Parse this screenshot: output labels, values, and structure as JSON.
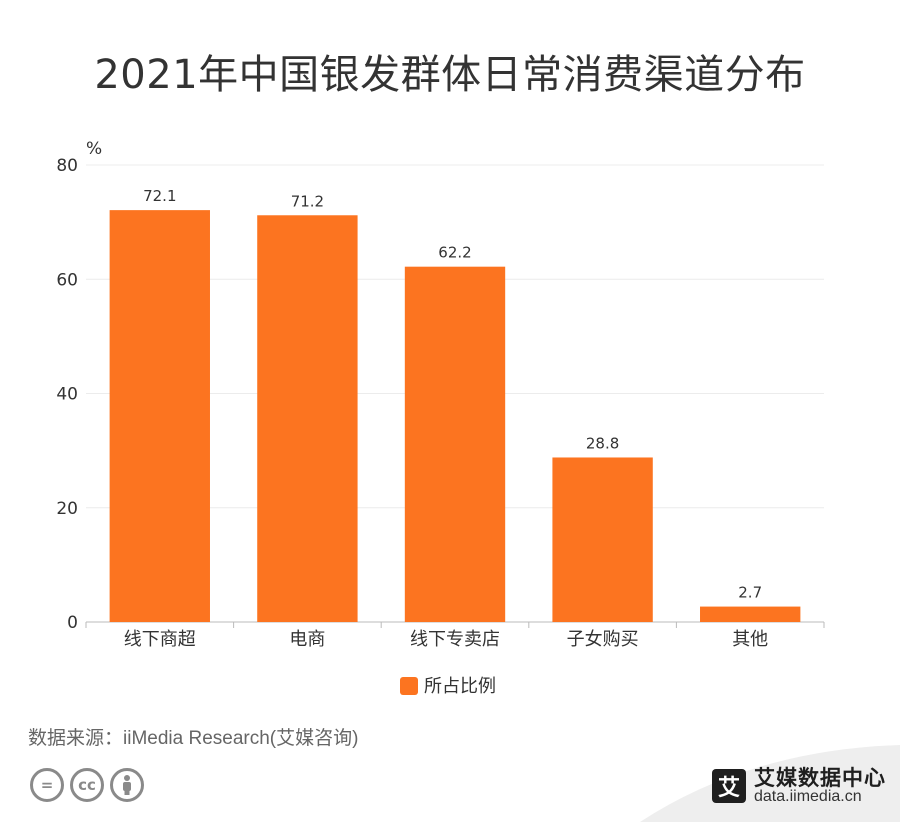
{
  "title": "2021年中国银发群体日常消费渠道分布",
  "source": "数据来源：iiMedia Research(艾媒咨询)",
  "brand": {
    "logo_char": "艾",
    "name": "艾媒数据中心",
    "url": "data.iimedia.cn"
  },
  "license_icons": [
    "=",
    "cc",
    "person"
  ],
  "chart_data": {
    "type": "bar",
    "title": "2021年中国银发群体日常消费渠道分布",
    "ylabel": "%",
    "xlabel": "",
    "categories": [
      "线下商超",
      "电商",
      "线下专卖店",
      "子女购买",
      "其他"
    ],
    "series": [
      {
        "name": "所占比例",
        "values": [
          72.1,
          71.2,
          62.2,
          28.8,
          2.7
        ],
        "color": "#fc7420"
      }
    ],
    "ylim": [
      0,
      80
    ],
    "yticks": [
      0,
      20,
      40,
      60,
      80
    ],
    "grid": true,
    "legend": "bottom-center"
  }
}
